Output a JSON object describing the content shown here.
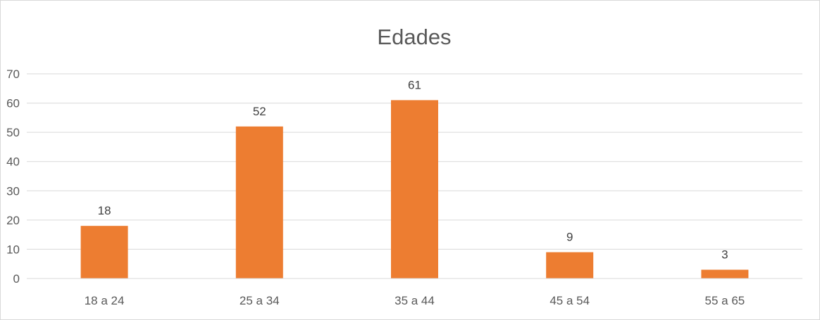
{
  "chart_data": {
    "type": "bar",
    "title": "Edades",
    "xlabel": "",
    "ylabel": "",
    "categories": [
      "18 a 24",
      "25 a 34",
      "35 a 44",
      "45 a 54",
      "55 a 65"
    ],
    "values": [
      18,
      52,
      61,
      9,
      3
    ],
    "data_labels": [
      "18",
      "52",
      "61",
      "9",
      "3"
    ],
    "ylim": [
      0,
      70
    ],
    "y_ticks": [
      "0",
      "10",
      "20",
      "30",
      "40",
      "50",
      "60",
      "70"
    ],
    "grid": true,
    "legend": "none",
    "bar_color": "#ed7d31",
    "grid_color": "#d9d9d9",
    "axis_color": "#d9d9d9"
  }
}
